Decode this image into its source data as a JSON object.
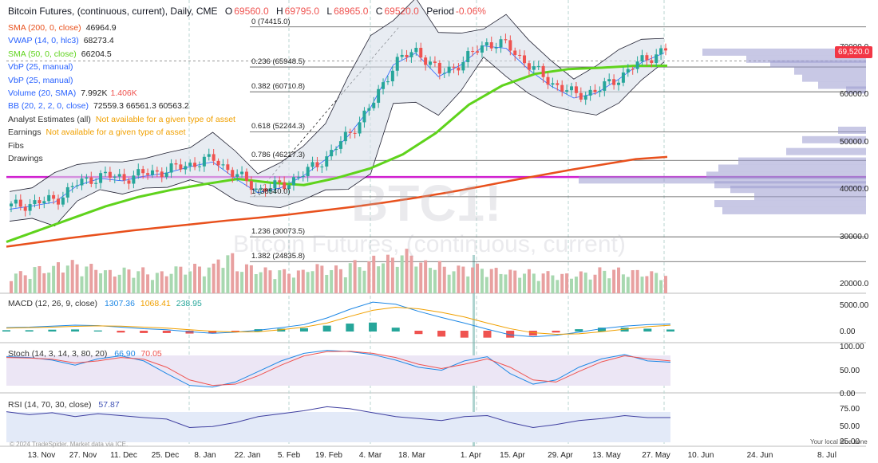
{
  "header": {
    "symbol": "Bitcoin Futures, (continuous, current), Daily, CME",
    "o_label": "O",
    "o_val": "69560.0",
    "h_label": "H",
    "h_val": "69795.0",
    "l_label": "L",
    "l_val": "68965.0",
    "c_label": "C",
    "c_val": "69520.0",
    "period_label": "Period",
    "period_val": "-0.06%"
  },
  "legends": [
    {
      "name": "sma200",
      "text": "SMA (200, 0, close)",
      "value": "46964.9",
      "color": "#e8501c"
    },
    {
      "name": "vwap",
      "text": "VWAP (14, 0, hlc3)",
      "value": "68273.4",
      "color": "#2962ff"
    },
    {
      "name": "sma50",
      "text": "SMA (50, 0, close)",
      "value": "66204.5",
      "color": "#5fd31c"
    },
    {
      "name": "vbp1",
      "text": "VbP (25, manual)",
      "value": "",
      "color": "#2962ff"
    },
    {
      "name": "vbp2",
      "text": "VbP (25, manual)",
      "value": "",
      "color": "#2962ff"
    },
    {
      "name": "volume",
      "text": "Volume (20, SMA)",
      "value": "7.992K",
      "value2": "1.406K",
      "color": "#2962ff"
    },
    {
      "name": "bb",
      "text": "BB (20, 2, 2, 0, close)",
      "value": "72559.3 66561.3 60563.2",
      "color": "#2962ff"
    },
    {
      "name": "analyst",
      "text": "Analyst Estimates (all)",
      "value": "Not available for a given type of asset",
      "color": "#333"
    },
    {
      "name": "earnings",
      "text": "Earnings",
      "value": "Not available for a given type of asset",
      "color": "#333"
    },
    {
      "name": "fibs",
      "text": "Fibs",
      "value": "",
      "color": "#333"
    },
    {
      "name": "drawings",
      "text": "Drawings",
      "value": "",
      "color": "#333"
    }
  ],
  "fib_levels": [
    {
      "label": "0 (74415.0)",
      "price": 74415
    },
    {
      "label": "0.236 (65948.5)",
      "price": 65948.5
    },
    {
      "label": "0.382 (60710.8)",
      "price": 60710.8
    },
    {
      "label": "0.618 (52244.3)",
      "price": 52244.3
    },
    {
      "label": "0.786 (46217.3)",
      "price": 46217.3
    },
    {
      "label": "1 (38540.0)",
      "price": 38540
    },
    {
      "label": "1.236 (30073.5)",
      "price": 30073.5
    },
    {
      "label": "1.382 (24835.8)",
      "price": 24835.8
    }
  ],
  "price_axis": {
    "labels": [
      "70000.0",
      "60000.0",
      "50000.0",
      "40000.0",
      "30000.0",
      "20000.0"
    ],
    "values": [
      70000,
      60000,
      50000,
      40000,
      30000,
      20000
    ],
    "last_price": "69,520.0",
    "last_value": 69520
  },
  "macd": {
    "legend": "MACD (12, 26, 9, close)",
    "v1": "1307.36",
    "v2": "1068.41",
    "v3": "238.95",
    "axis": [
      "5000.00",
      "0.00"
    ]
  },
  "stoch": {
    "legend": "Stoch (14, 3, 14, 3, 80, 20)",
    "v1": "66.90",
    "v2": "70.05",
    "axis": [
      "100.00",
      "50.00",
      "0.00"
    ]
  },
  "rsi": {
    "legend": "RSI (14, 70, 30, close)",
    "v1": "57.87",
    "axis": [
      "75.00",
      "50.00",
      "25.00"
    ]
  },
  "time_axis": [
    "13. Nov",
    "27. Nov",
    "11. Dec",
    "25. Dec",
    "8. Jan",
    "22. Jan",
    "5. Feb",
    "19. Feb",
    "4. Mar",
    "18. Mar",
    "1. Apr",
    "15. Apr",
    "29. Apr",
    "13. May",
    "27. May",
    "10. Jun",
    "24. Jun",
    "8. Jul"
  ],
  "watermark": {
    "big": "BTC1!",
    "sub": "Bitcoin Futures, (continuous, current)"
  },
  "footer": {
    "copyright": "© 2024 TradeSpider. Market data via ICE.",
    "tz": "Your local time zone"
  },
  "colors": {
    "up": "#26a69a",
    "down": "#ef5350",
    "sma200": "#e8501c",
    "sma50": "#5fd31c",
    "bb": "#2962ff",
    "magenta": "#d020d0",
    "vbp": "#9a9ad0"
  },
  "chart_data": {
    "type": "candlestick",
    "title": "Bitcoin Futures, (continuous, current), Daily, CME",
    "closes_weekly": [
      36500,
      37200,
      38000,
      41500,
      43000,
      42500,
      43500,
      44200,
      45500,
      46500,
      43000,
      40000,
      41000,
      43500,
      47000,
      52000,
      58000,
      67000,
      69500,
      64500,
      67000,
      71000,
      70500,
      66000,
      62500,
      60000,
      61000,
      64000,
      67500,
      69500
    ],
    "sma200": [
      28000,
      28900,
      29800,
      30600,
      31400,
      32100,
      32800,
      33500,
      34100,
      34800,
      35600,
      36400,
      37300,
      38300,
      39400,
      40600,
      41900,
      43100,
      44300,
      45400,
      46500,
      46965
    ],
    "sma50": [
      29000,
      31500,
      34000,
      36500,
      38500,
      40000,
      41200,
      42300,
      41500,
      41000,
      42500,
      44500,
      47500,
      52000,
      58000,
      62000,
      64500,
      65500,
      65800,
      66200,
      66204
    ],
    "volume_weekly": [
      6000,
      7500,
      9000,
      8000,
      6500,
      7000,
      6000,
      7500,
      8000,
      11000,
      8000,
      7000,
      6500,
      8000,
      7500,
      9000,
      10500,
      12000,
      9000,
      7500,
      8000,
      7000,
      6500,
      6000,
      5500,
      6000,
      7000,
      6500,
      6000,
      5500
    ],
    "macd": [
      600,
      700,
      900,
      1100,
      1000,
      700,
      400,
      200,
      -200,
      -500,
      -300,
      100,
      600,
      1200,
      2500,
      4200,
      5600,
      5200,
      3800,
      2600,
      1500,
      300,
      -800,
      -1200,
      -900,
      -300,
      400,
      900,
      1200,
      1307
    ],
    "macd_signal": [
      500,
      600,
      700,
      850,
      950,
      900,
      700,
      500,
      200,
      -100,
      -250,
      -200,
      200,
      700,
      1500,
      2800,
      4000,
      4600,
      4300,
      3600,
      2700,
      1500,
      400,
      -400,
      -700,
      -600,
      -200,
      300,
      800,
      1068
    ],
    "stoch_k": [
      80,
      78,
      72,
      60,
      75,
      82,
      70,
      40,
      12,
      8,
      20,
      45,
      70,
      88,
      95,
      92,
      85,
      72,
      55,
      48,
      70,
      80,
      40,
      15,
      25,
      55,
      75,
      85,
      70,
      67
    ],
    "stoch_d": [
      78,
      77,
      74,
      65,
      70,
      78,
      74,
      55,
      25,
      12,
      15,
      35,
      60,
      82,
      92,
      93,
      88,
      78,
      62,
      52,
      62,
      75,
      55,
      25,
      20,
      45,
      68,
      82,
      75,
      70
    ],
    "rsi": [
      70,
      64,
      68,
      60,
      66,
      62,
      58,
      55,
      38,
      40,
      48,
      60,
      66,
      72,
      80,
      76,
      68,
      60,
      56,
      52,
      60,
      62,
      48,
      38,
      44,
      52,
      56,
      62,
      58,
      58
    ],
    "ylim": [
      15000,
      80000
    ]
  }
}
